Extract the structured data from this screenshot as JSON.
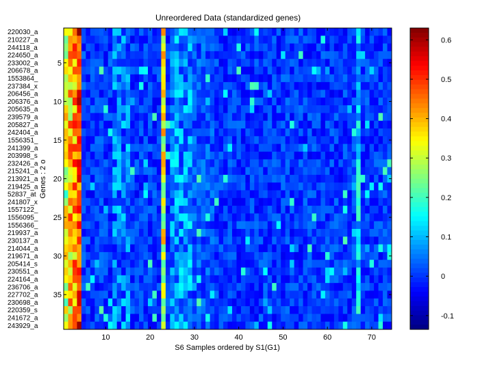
{
  "chart_data": {
    "type": "heatmap",
    "title": "Unreordered Data (standardized genes)",
    "xlabel": "S6 Samples ordered by S1(G1)",
    "ylabel": "Genes : 2 o",
    "n_rows": 39,
    "n_cols": 74,
    "xlim": [
      0.5,
      74.5
    ],
    "ylim": [
      0.5,
      39.5
    ],
    "x_ticks": [
      10,
      20,
      30,
      40,
      50,
      60,
      70
    ],
    "y_ticks": [
      5,
      10,
      15,
      20,
      25,
      30,
      35
    ],
    "row_labels": [
      "220030_a",
      "210227_a",
      "244118_a",
      "224650_a",
      "233002_a",
      "206678_a",
      "1553864_",
      "237384_x",
      "206456_a",
      "206376_a",
      "205635_a",
      "239579_a",
      "205827_a",
      "242404_a",
      "1556351_",
      "241399_a",
      "203998_s",
      "232426_a",
      "215241_a",
      "213921_a",
      "219425_a",
      "52837_at",
      "241807_x",
      "1557122_",
      "1556095_",
      "1556366_",
      "219937_a",
      "230137_a",
      "214044_a",
      "219671_a",
      "205414_s",
      "230551_a",
      "224164_a",
      "236706_a",
      "227702_a",
      "230698_a",
      "220359_s",
      "241672_a",
      "243929_a"
    ],
    "colorbar": {
      "min": -0.135,
      "max": 0.63,
      "ticks": [
        -0.1,
        0,
        0.1,
        0.2,
        0.3,
        0.4,
        0.5,
        0.6
      ],
      "colormap": "jet"
    },
    "column_profile": {
      "typical_value": 0.0,
      "high_columns": [
        {
          "column": 1,
          "value": 0.3
        },
        {
          "column": 2,
          "value": 0.38
        },
        {
          "column": 3,
          "value": 0.42
        },
        {
          "column": 4,
          "value": 0.5
        },
        {
          "column": 23,
          "value": 0.32
        },
        {
          "column": 67,
          "value": 0.12
        }
      ],
      "elevated_bands": [
        {
          "columns": [
            12,
            15
          ],
          "value": 0.05
        },
        {
          "columns": [
            25,
            29
          ],
          "value": 0.07
        },
        {
          "columns": [
            30,
            34
          ],
          "value": 0.02
        }
      ]
    }
  }
}
